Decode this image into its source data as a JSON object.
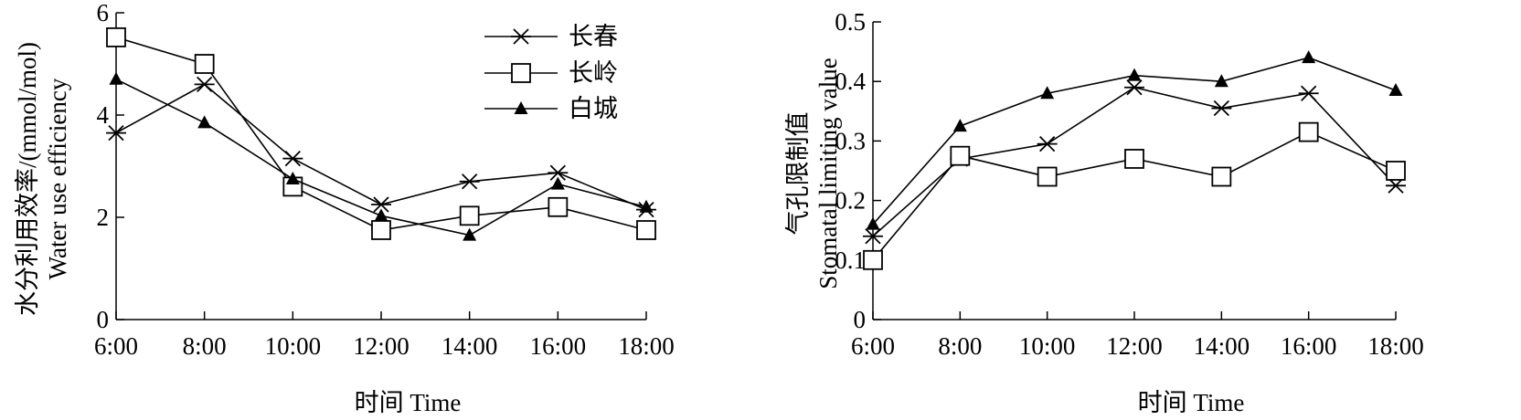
{
  "chart_data": [
    {
      "type": "line",
      "x": [
        "6:00",
        "8:00",
        "10:00",
        "12:00",
        "14:00",
        "16:00",
        "18:00"
      ],
      "xlabel": "时间 Time",
      "ylabel_cn": "水分利用效率/(mmol/mol)",
      "ylabel_en": "Water use efficiency",
      "ylim": [
        0,
        6
      ],
      "yticks": [
        "0",
        "2",
        "4",
        "6"
      ],
      "grid": false,
      "legend": "top-right",
      "series": [
        {
          "name": "长春",
          "marker": "asterisk",
          "values": [
            3.65,
            4.6,
            3.15,
            2.25,
            2.7,
            2.87,
            2.15
          ]
        },
        {
          "name": "长岭",
          "marker": "open-square",
          "values": [
            5.52,
            5.0,
            2.6,
            1.75,
            2.03,
            2.2,
            1.75
          ]
        },
        {
          "name": "白城",
          "marker": "filled-triangle",
          "values": [
            4.7,
            3.85,
            2.75,
            2.03,
            1.65,
            2.65,
            2.2
          ]
        }
      ]
    },
    {
      "type": "line",
      "x": [
        "6:00",
        "8:00",
        "10:00",
        "12:00",
        "14:00",
        "16:00",
        "18:00"
      ],
      "xlabel": "时间 Time",
      "ylabel_cn": "气孔限制值",
      "ylabel_en": "Stomatal limiting value",
      "ylim": [
        0,
        0.5
      ],
      "yticks": [
        "0",
        "0.1",
        "0.2",
        "0.3",
        "0.4",
        "0.5"
      ],
      "grid": false,
      "series": [
        {
          "name": "长春",
          "marker": "asterisk",
          "values": [
            0.14,
            0.27,
            0.295,
            0.39,
            0.355,
            0.38,
            0.225
          ]
        },
        {
          "name": "长岭",
          "marker": "open-square",
          "values": [
            0.1,
            0.275,
            0.24,
            0.27,
            0.24,
            0.315,
            0.25
          ]
        },
        {
          "name": "白城",
          "marker": "filled-triangle",
          "values": [
            0.16,
            0.325,
            0.38,
            0.41,
            0.4,
            0.44,
            0.385
          ]
        }
      ]
    }
  ]
}
